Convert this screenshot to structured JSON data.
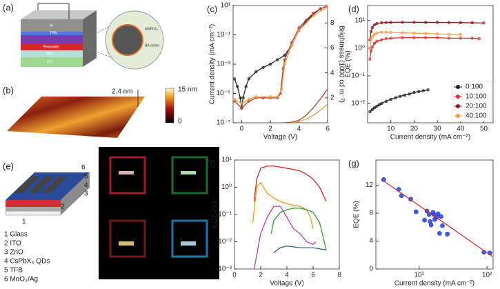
{
  "figure": {
    "panel_a": {
      "panel": "(a)",
      "layers": [
        "Al",
        "TPBi",
        "Perovskite",
        "HTL",
        "ITO"
      ],
      "inset": [
        "MAPbX₃",
        "BA cation"
      ]
    },
    "panel_b": {
      "panel": "(b)",
      "height": "2.4 nm",
      "colorbar_max": "15 nm",
      "colorbar_min": "0"
    },
    "panel_e": {
      "panel": "(e)",
      "numbers": [
        "6",
        "5",
        "4",
        "3",
        "2",
        "1"
      ],
      "legend": [
        "1 Glass",
        "2 ITO",
        "3 ZnO",
        "4 CsPbX₃ QDs",
        "5 TFB",
        "6 MoO₃/Ag"
      ]
    }
  },
  "chart_data": [
    {
      "type": "line",
      "panel": "(c)",
      "xlabel": "Voltage (V)",
      "ylabel": "Current density (mA cm⁻²)",
      "y2label": "Brightness (1000 cd m⁻²)",
      "xlim": [
        -0.6,
        6
      ],
      "xticks": [
        0,
        2,
        4,
        6
      ],
      "ylog": true,
      "ylim": [
        1e-07,
        10
      ],
      "yticks": [
        {
          "value": 10,
          "label": "10¹"
        },
        {
          "value": 0.1,
          "label": "10⁻¹"
        },
        {
          "value": 0.001,
          "label": "10⁻³"
        },
        {
          "value": 1e-05,
          "label": "10⁻⁵"
        },
        {
          "value": 1e-07,
          "label": "10⁻⁷"
        }
      ],
      "y2lim": [
        0,
        9.4
      ],
      "y2ticks": [
        2,
        4,
        6,
        8
      ],
      "series": [
        {
          "color": "#222222",
          "mode": "line+markers",
          "x": [
            -0.5,
            -0.3,
            -0.1,
            0,
            0.1,
            0.3,
            0.5,
            1,
            1.5,
            2,
            2.5,
            3,
            3.5,
            4,
            4.5,
            5,
            5.5,
            6
          ],
          "values": [
            0.0001,
            3e-05,
            5e-06,
            1e-06,
            5e-06,
            3e-05,
            0.0001,
            0.0003,
            0.0006,
            0.001,
            0.002,
            0.004,
            0.02,
            0.2,
            0.8,
            2.5,
            6,
            9
          ]
        },
        {
          "color": "#c0392b",
          "mode": "line+markers",
          "x": [
            -0.5,
            0,
            0.5,
            1,
            1.5,
            2,
            2.5,
            2.7,
            2.9,
            3,
            3.5,
            4,
            4.5,
            5,
            5.5,
            6
          ],
          "values": [
            3e-06,
            1e-06,
            3e-06,
            5e-06,
            5e-06,
            5e-06,
            5e-06,
            1e-05,
            0.0005,
            0.002,
            0.03,
            0.3,
            1,
            3,
            6,
            9.5
          ]
        },
        {
          "color": "#f0a040",
          "mode": "line+markers",
          "x": [
            -0.5,
            0,
            0.5,
            1,
            2,
            2.5,
            2.8,
            3,
            3.5,
            4,
            5,
            6
          ],
          "values": [
            4e-06,
            2e-06,
            4e-06,
            6e-06,
            6e-06,
            6e-06,
            2e-05,
            0.001,
            0.02,
            0.2,
            2,
            8
          ]
        },
        {
          "color": "#c0392b",
          "mode": "line",
          "axis": "y2",
          "x": [
            3,
            3.5,
            4,
            4.5,
            5,
            5.5,
            6
          ],
          "values": [
            0,
            0.05,
            0.2,
            0.6,
            1.2,
            1.9,
            2.7
          ]
        },
        {
          "color": "#f0a040",
          "mode": "line",
          "axis": "y2",
          "x": [
            3.5,
            4,
            4.5,
            5,
            5.5,
            6
          ],
          "values": [
            0,
            0.1,
            0.3,
            0.6,
            1,
            1.5
          ]
        }
      ]
    },
    {
      "type": "line",
      "panel": "(d)",
      "xlabel": "Current density (mA cm⁻²)",
      "ylabel": "EQE (%)",
      "legend": "lower-right",
      "xlim": [
        0,
        54
      ],
      "xticks": [
        10,
        20,
        30,
        40,
        50
      ],
      "ylog": true,
      "ylim": [
        0.002,
        35
      ],
      "yticks": [
        {
          "value": 0.01,
          "label": "10⁻²"
        },
        {
          "value": 0.1,
          "label": "10⁻¹"
        },
        {
          "value": 1,
          "label": "10⁰"
        },
        {
          "value": 10,
          "label": "10¹"
        }
      ],
      "series": [
        {
          "name": "0:100",
          "color": "#222222",
          "mode": "line+markers",
          "x": [
            1,
            2,
            3,
            4,
            5,
            6,
            8,
            10,
            12,
            14,
            16,
            18,
            20,
            22,
            24,
            26
          ],
          "values": [
            0.005,
            0.006,
            0.007,
            0.008,
            0.009,
            0.01,
            0.012,
            0.014,
            0.016,
            0.018,
            0.02,
            0.022,
            0.025,
            0.027,
            0.029,
            0.031
          ]
        },
        {
          "name": "10:100",
          "color": "#e0302a",
          "mode": "line+markers",
          "x": [
            1,
            1.5,
            2,
            3,
            4,
            6,
            8,
            10,
            15,
            20,
            25,
            30,
            35,
            40,
            45,
            48
          ],
          "values": [
            0.4,
            0.8,
            1.1,
            1.5,
            1.8,
            2,
            2.2,
            2.3,
            2.4,
            2.4,
            2.4,
            2.4,
            2.3,
            2.3,
            2.3,
            2.2
          ]
        },
        {
          "name": "20:100",
          "color": "#8b1a1a",
          "mode": "line+markers",
          "x": [
            1,
            1.5,
            2,
            3,
            4,
            6,
            8,
            10,
            15,
            20,
            25,
            30,
            35,
            40,
            45,
            50
          ],
          "values": [
            2,
            4,
            5.5,
            7,
            7.8,
            8.3,
            8.5,
            8.6,
            8.7,
            8.7,
            8.6,
            8.6,
            8.5,
            8.4,
            8.3,
            8.2
          ]
        },
        {
          "name": "40:100",
          "color": "#f0a040",
          "mode": "line+markers",
          "x": [
            1,
            1.5,
            2,
            3,
            4,
            6,
            8,
            10,
            15,
            20,
            25,
            30,
            35,
            40
          ],
          "values": [
            1,
            2,
            2.6,
            3.2,
            3.5,
            3.8,
            3.8,
            3.7,
            3.6,
            3.5,
            3.4,
            3.3,
            3.2,
            3.1
          ]
        }
      ]
    },
    {
      "type": "line",
      "panel": "(f)",
      "xlabel": "Voltage (V)",
      "ylabel": "EQE (%)",
      "xlim": [
        0,
        8
      ],
      "xticks": [
        0,
        2,
        4,
        6,
        8
      ],
      "ylog": true,
      "ylim": [
        0.001,
        10
      ],
      "yticks": [
        {
          "value": 10,
          "label": "10¹"
        },
        {
          "value": 1,
          "label": "10⁰"
        },
        {
          "value": 0.1,
          "label": "10⁻¹"
        },
        {
          "value": 0.01,
          "label": "10⁻²"
        },
        {
          "value": 0.001,
          "label": "10⁻³"
        }
      ],
      "series": [
        {
          "color": "#e02020",
          "mode": "line",
          "x": [
            1.5,
            1.7,
            2,
            2.5,
            3,
            3.5,
            4,
            4.5,
            5,
            5.5,
            6,
            6.5,
            7
          ],
          "values": [
            0.3,
            2,
            5,
            6,
            6,
            5.5,
            5,
            4.5,
            4,
            3,
            2,
            1,
            0.3
          ]
        },
        {
          "color": "#f39c12",
          "mode": "line",
          "x": [
            1.4,
            1.7,
            2,
            2.5,
            3,
            3.5,
            4,
            4.5,
            5,
            5.5,
            5.8,
            6
          ],
          "values": [
            0.05,
            1,
            1.5,
            0.6,
            0.4,
            0.3,
            0.25,
            0.22,
            0.2,
            0.15,
            0.08,
            0.03
          ]
        },
        {
          "color": "#c03cc0",
          "mode": "line",
          "x": [
            1.5,
            2,
            2.5,
            3,
            3.5,
            4,
            4.5,
            5,
            5.5,
            6,
            6.2
          ],
          "values": [
            0.001,
            0.02,
            0.08,
            0.2,
            0.2,
            0.08,
            0.03,
            0.02,
            0.01,
            0.008,
            0.01
          ]
        },
        {
          "color": "#2ca02c",
          "mode": "line",
          "x": [
            2.8,
            3,
            3.5,
            4,
            4.5,
            5,
            5.5,
            6,
            6.5,
            7
          ],
          "values": [
            0.02,
            0.06,
            0.12,
            0.15,
            0.17,
            0.17,
            0.15,
            0.12,
            0.05,
            0.005
          ]
        },
        {
          "color": "#1f5fa0",
          "mode": "line",
          "x": [
            3,
            3.5,
            4,
            5,
            6,
            7
          ],
          "values": [
            0.004,
            0.006,
            0.007,
            0.006,
            0.006,
            0.005
          ]
        }
      ]
    },
    {
      "type": "scatter",
      "panel": "(g)",
      "xlabel": "Current density (mA cm⁻²)",
      "ylabel": "EQE (%)",
      "xlog": true,
      "xlim": [
        2.3,
        123
      ],
      "xticks": [
        {
          "value": 10,
          "label": "10¹"
        },
        {
          "value": 100,
          "label": "10²"
        }
      ],
      "ylim": [
        0,
        15.6
      ],
      "yticks": [
        0,
        4,
        8,
        12
      ],
      "series": [
        {
          "color": "#2040e0",
          "mode": "markers",
          "x": [
            3,
            5,
            5.5,
            7.5,
            9,
            12,
            13,
            14,
            14.5,
            15,
            16,
            16.5,
            17,
            18,
            19,
            20,
            21,
            22,
            26,
            90,
            110
          ],
          "values": [
            12.8,
            11.4,
            10.5,
            10,
            8.2,
            7,
            8.3,
            7.8,
            6.8,
            6.3,
            8.1,
            7.8,
            7.1,
            7.4,
            7.9,
            5.1,
            7.5,
            6.2,
            5,
            2.4,
            2.3
          ]
        },
        {
          "color": "#d9302b",
          "mode": "line",
          "x": [
            3,
            120
          ],
          "values": [
            12.6,
            1.8
          ]
        }
      ]
    }
  ]
}
